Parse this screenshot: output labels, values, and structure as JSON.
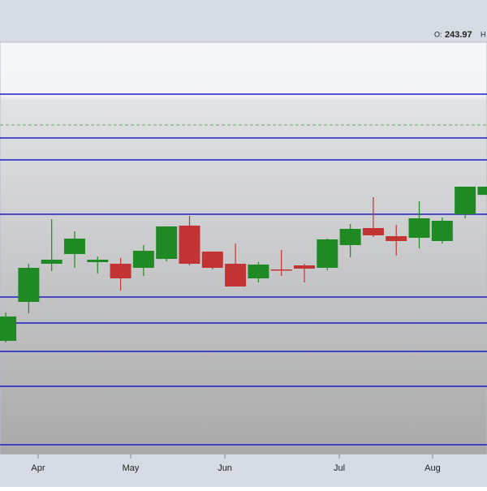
{
  "chart_data": {
    "type": "candlestick",
    "legend": {
      "open_label": "O:",
      "open_value": 243.97,
      "high_label": "H"
    },
    "x": [
      0,
      1,
      2,
      3,
      4,
      5,
      6,
      7,
      8,
      9,
      10,
      11,
      12,
      13,
      14,
      15,
      16,
      17,
      18,
      19,
      20,
      21
    ],
    "open": [
      199,
      211,
      222.75,
      225.75,
      223.25,
      222.75,
      221.5,
      224.25,
      234.5,
      226.5,
      222.75,
      218.25,
      221,
      222.25,
      221.5,
      228.5,
      233.75,
      231.25,
      230.75,
      229.75,
      238,
      243.97
    ],
    "high": [
      207.75,
      222.75,
      236.5,
      232.75,
      225,
      224.5,
      228.5,
      234.25,
      237.5,
      226.5,
      229,
      223.25,
      227,
      222.75,
      230.5,
      235,
      243.25,
      234.75,
      242,
      237,
      246.5,
      246.5
    ],
    "low": [
      198.5,
      207.5,
      220.5,
      221.5,
      219.75,
      214.5,
      219,
      223.5,
      222.25,
      221,
      215.75,
      217,
      219,
      217,
      220.75,
      224.75,
      231,
      225.25,
      227.5,
      229,
      236.75,
      244
    ],
    "close": [
      206.5,
      221.5,
      224,
      230.5,
      224,
      218.25,
      226.75,
      234.25,
      222.75,
      221.5,
      215.75,
      222.5,
      220.75,
      221.25,
      230.25,
      233.5,
      231.5,
      229.75,
      236.75,
      236,
      246.5,
      246.5
    ],
    "up_color": "#1f8a24",
    "down_color": "#c23434",
    "levels": [
      275,
      261.5,
      254.75,
      238,
      212.5,
      204.5,
      195.75,
      185,
      167
    ],
    "level_color": "#1f1fc4",
    "dashed_level": 265.5,
    "dashed_color": "#5aaa5a",
    "xlim": [
      -0.25,
      20.95
    ],
    "ylim": [
      164,
      291
    ],
    "xticks": [
      {
        "value": 1.41,
        "label": "Apr"
      },
      {
        "value": 5.44,
        "label": "May"
      },
      {
        "value": 9.54,
        "label": "Jun"
      },
      {
        "value": 14.52,
        "label": "Jul"
      },
      {
        "value": 18.58,
        "label": "Aug"
      }
    ]
  }
}
